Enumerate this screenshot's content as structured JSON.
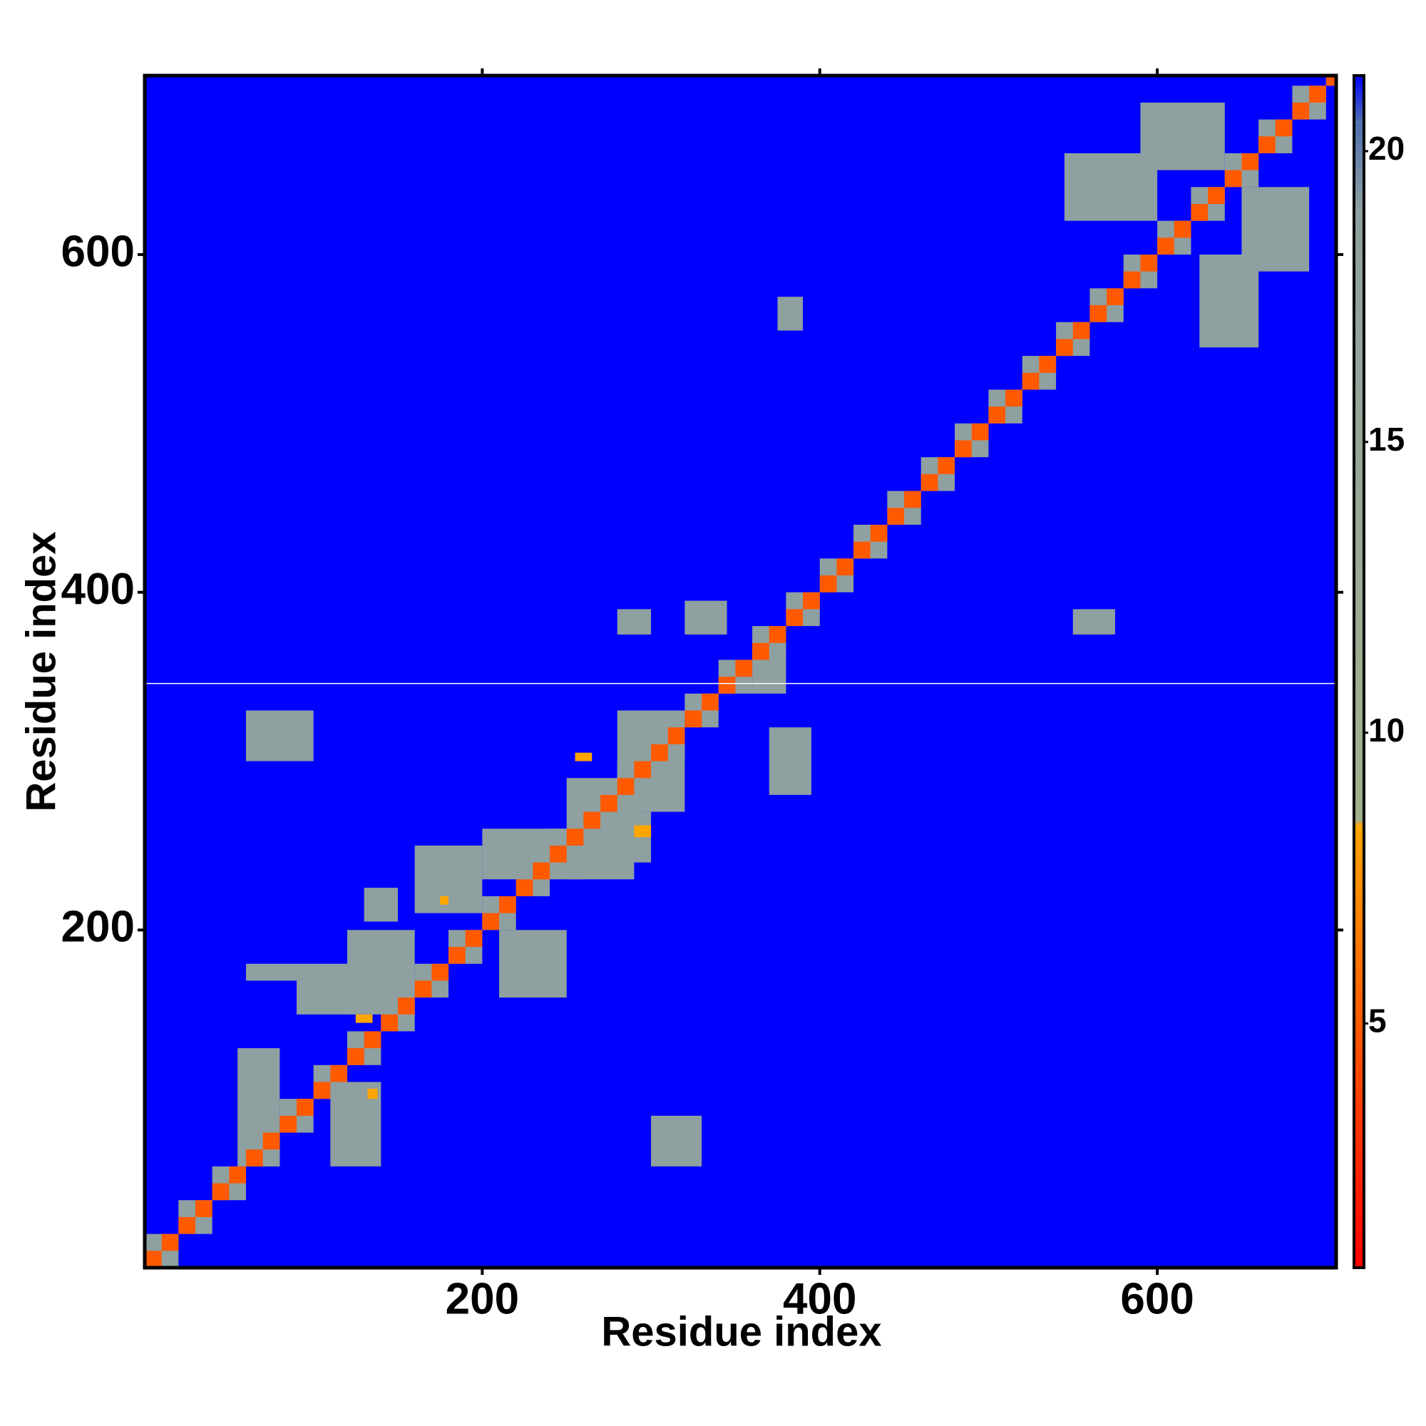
{
  "chart_data": {
    "type": "heatmap",
    "xlabel": "Residue index",
    "ylabel": "Residue index",
    "xlim": [
      0,
      706
    ],
    "ylim": [
      0,
      706
    ],
    "xticks": [
      200,
      400,
      600
    ],
    "yticks": [
      200,
      400,
      600
    ],
    "background_color": "#0000ff",
    "missing_rows": [
      346
    ],
    "colorbar": {
      "lim": [
        0.8,
        21.3
      ],
      "ticks": [
        5,
        10,
        15,
        20
      ],
      "stops": [
        {
          "value": 0.8,
          "color": "#ff0000"
        },
        {
          "value": 5,
          "color": "#ff5a00"
        },
        {
          "value": 8.4,
          "color": "#ffa500"
        },
        {
          "value": 8.5,
          "color": "#a3b08c"
        },
        {
          "value": 19,
          "color": "#8ea0a0"
        },
        {
          "value": 20.5,
          "color": "#4f6fae"
        },
        {
          "value": 21.3,
          "color": "#0000ff"
        }
      ]
    },
    "patches": [
      [
        0,
        20,
        0,
        20,
        12
      ],
      [
        20,
        40,
        20,
        40,
        12
      ],
      [
        40,
        60,
        40,
        60,
        12
      ],
      [
        60,
        80,
        60,
        80,
        12
      ],
      [
        80,
        100,
        80,
        100,
        12
      ],
      [
        100,
        120,
        100,
        120,
        12
      ],
      [
        120,
        140,
        120,
        140,
        12
      ],
      [
        140,
        160,
        140,
        160,
        12
      ],
      [
        160,
        180,
        160,
        180,
        12
      ],
      [
        180,
        200,
        180,
        200,
        12
      ],
      [
        200,
        220,
        200,
        220,
        12
      ],
      [
        220,
        240,
        220,
        240,
        12
      ],
      [
        240,
        260,
        240,
        260,
        12
      ],
      [
        260,
        280,
        260,
        280,
        12
      ],
      [
        280,
        300,
        280,
        300,
        12
      ],
      [
        300,
        320,
        300,
        320,
        12
      ],
      [
        320,
        340,
        320,
        340,
        12
      ],
      [
        340,
        360,
        340,
        360,
        12
      ],
      [
        360,
        380,
        360,
        380,
        12
      ],
      [
        380,
        400,
        380,
        400,
        12
      ],
      [
        400,
        420,
        400,
        420,
        12
      ],
      [
        420,
        440,
        420,
        440,
        12
      ],
      [
        440,
        460,
        440,
        460,
        12
      ],
      [
        460,
        480,
        460,
        480,
        12
      ],
      [
        480,
        500,
        480,
        500,
        12
      ],
      [
        500,
        520,
        500,
        520,
        12
      ],
      [
        520,
        540,
        520,
        540,
        12
      ],
      [
        540,
        560,
        540,
        560,
        12
      ],
      [
        560,
        580,
        560,
        580,
        12
      ],
      [
        580,
        600,
        580,
        600,
        12
      ],
      [
        600,
        620,
        600,
        620,
        12
      ],
      [
        620,
        640,
        620,
        640,
        12
      ],
      [
        640,
        660,
        640,
        660,
        12
      ],
      [
        660,
        680,
        660,
        680,
        12
      ],
      [
        680,
        700,
        680,
        700,
        12
      ],
      [
        700,
        706,
        700,
        706,
        12
      ],
      [
        55,
        80,
        60,
        130,
        11
      ],
      [
        60,
        100,
        300,
        330,
        12
      ],
      [
        60,
        90,
        170,
        180,
        12
      ],
      [
        130,
        150,
        205,
        225,
        12
      ],
      [
        120,
        160,
        150,
        200,
        11
      ],
      [
        90,
        130,
        150,
        180,
        11
      ],
      [
        110,
        140,
        60,
        110,
        11
      ],
      [
        160,
        200,
        210,
        250,
        12
      ],
      [
        200,
        260,
        230,
        260,
        11
      ],
      [
        210,
        250,
        160,
        200,
        11
      ],
      [
        250,
        290,
        230,
        290,
        11
      ],
      [
        280,
        320,
        270,
        330,
        11
      ],
      [
        300,
        330,
        60,
        90,
        12
      ],
      [
        370,
        395,
        280,
        320,
        11
      ],
      [
        375,
        390,
        555,
        575,
        12
      ],
      [
        550,
        575,
        375,
        390,
        12
      ],
      [
        280,
        300,
        375,
        390,
        12
      ],
      [
        320,
        345,
        375,
        395,
        12
      ],
      [
        270,
        300,
        240,
        270,
        12
      ],
      [
        545,
        600,
        620,
        660,
        12
      ],
      [
        625,
        660,
        545,
        600,
        12
      ],
      [
        650,
        690,
        590,
        640,
        12
      ],
      [
        590,
        640,
        650,
        690,
        12
      ],
      [
        360,
        380,
        340,
        370,
        12
      ],
      [
        125,
        135,
        145,
        150,
        7
      ],
      [
        175,
        180,
        215,
        220,
        7
      ],
      [
        255,
        265,
        300,
        305,
        7
      ],
      [
        290,
        300,
        255,
        262,
        7
      ],
      [
        132,
        138,
        100,
        106,
        7
      ],
      [
        0,
        10,
        0,
        10,
        2
      ],
      [
        10,
        20,
        10,
        20,
        2
      ],
      [
        20,
        30,
        20,
        30,
        2
      ],
      [
        30,
        40,
        30,
        40,
        2
      ],
      [
        40,
        50,
        40,
        50,
        2
      ],
      [
        50,
        60,
        50,
        60,
        2
      ],
      [
        60,
        70,
        60,
        70,
        2
      ],
      [
        70,
        80,
        70,
        80,
        2
      ],
      [
        80,
        90,
        80,
        90,
        2
      ],
      [
        90,
        100,
        90,
        100,
        2
      ],
      [
        100,
        110,
        100,
        110,
        2
      ],
      [
        110,
        120,
        110,
        120,
        2
      ],
      [
        120,
        130,
        120,
        130,
        2
      ],
      [
        130,
        140,
        130,
        140,
        2
      ],
      [
        140,
        150,
        140,
        150,
        2
      ],
      [
        150,
        160,
        150,
        160,
        2
      ],
      [
        160,
        170,
        160,
        170,
        2
      ],
      [
        170,
        180,
        170,
        180,
        2
      ],
      [
        180,
        190,
        180,
        190,
        2
      ],
      [
        190,
        200,
        190,
        200,
        2
      ],
      [
        200,
        210,
        200,
        210,
        2
      ],
      [
        210,
        220,
        210,
        220,
        2
      ],
      [
        220,
        230,
        220,
        230,
        2
      ],
      [
        230,
        240,
        230,
        240,
        2
      ],
      [
        240,
        250,
        240,
        250,
        2
      ],
      [
        250,
        260,
        250,
        260,
        2
      ],
      [
        260,
        270,
        260,
        270,
        2
      ],
      [
        270,
        280,
        270,
        280,
        2
      ],
      [
        280,
        290,
        280,
        290,
        2
      ],
      [
        290,
        300,
        290,
        300,
        2
      ],
      [
        300,
        310,
        300,
        310,
        2
      ],
      [
        310,
        320,
        310,
        320,
        2
      ],
      [
        320,
        330,
        320,
        330,
        2
      ],
      [
        330,
        340,
        330,
        340,
        2
      ],
      [
        340,
        350,
        340,
        350,
        2
      ],
      [
        350,
        360,
        350,
        360,
        2
      ],
      [
        360,
        370,
        360,
        370,
        2
      ],
      [
        370,
        380,
        370,
        380,
        2
      ],
      [
        380,
        390,
        380,
        390,
        2
      ],
      [
        390,
        400,
        390,
        400,
        2
      ],
      [
        400,
        410,
        400,
        410,
        2
      ],
      [
        410,
        420,
        410,
        420,
        2
      ],
      [
        420,
        430,
        420,
        430,
        2
      ],
      [
        430,
        440,
        430,
        440,
        2
      ],
      [
        440,
        450,
        440,
        450,
        2
      ],
      [
        450,
        460,
        450,
        460,
        2
      ],
      [
        460,
        470,
        460,
        470,
        2
      ],
      [
        470,
        480,
        470,
        480,
        2
      ],
      [
        480,
        490,
        480,
        490,
        2
      ],
      [
        490,
        500,
        490,
        500,
        2
      ],
      [
        500,
        510,
        500,
        510,
        2
      ],
      [
        510,
        520,
        510,
        520,
        2
      ],
      [
        520,
        530,
        520,
        530,
        2
      ],
      [
        530,
        540,
        530,
        540,
        2
      ],
      [
        540,
        550,
        540,
        550,
        2
      ],
      [
        550,
        560,
        550,
        560,
        2
      ],
      [
        560,
        570,
        560,
        570,
        2
      ],
      [
        570,
        580,
        570,
        580,
        2
      ],
      [
        580,
        590,
        580,
        590,
        2
      ],
      [
        590,
        600,
        590,
        600,
        2
      ],
      [
        600,
        610,
        600,
        610,
        2
      ],
      [
        610,
        620,
        610,
        620,
        2
      ],
      [
        620,
        630,
        620,
        630,
        2
      ],
      [
        630,
        640,
        630,
        640,
        2
      ],
      [
        640,
        650,
        640,
        650,
        2
      ],
      [
        650,
        660,
        650,
        660,
        2
      ],
      [
        660,
        670,
        660,
        670,
        2
      ],
      [
        670,
        680,
        670,
        680,
        2
      ],
      [
        680,
        690,
        680,
        690,
        2
      ],
      [
        690,
        700,
        690,
        700,
        2
      ],
      [
        700,
        706,
        700,
        706,
        2
      ]
    ]
  }
}
